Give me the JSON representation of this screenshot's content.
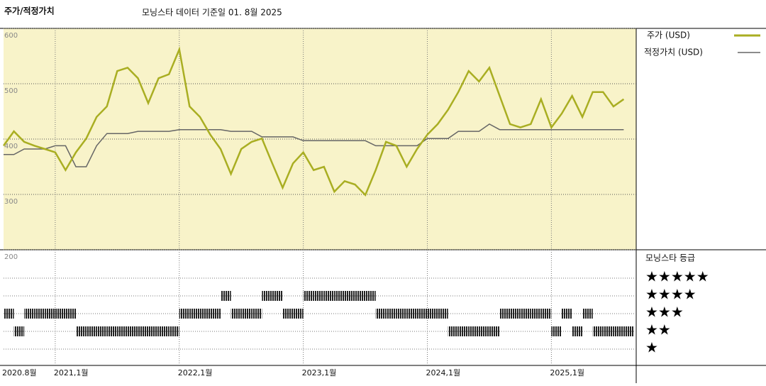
{
  "chart_data": {
    "type": "line",
    "title": "주가/적정가치",
    "subtitle": "모닝스타 데이터 기준일 01. 8월 2025",
    "x": [
      "2020-08",
      "2020-09",
      "2020-10",
      "2020-11",
      "2020-12",
      "2021-01",
      "2021-02",
      "2021-03",
      "2021-04",
      "2021-05",
      "2021-06",
      "2021-07",
      "2021-08",
      "2021-09",
      "2021-10",
      "2021-11",
      "2021-12",
      "2022-01",
      "2022-02",
      "2022-03",
      "2022-04",
      "2022-05",
      "2022-06",
      "2022-07",
      "2022-08",
      "2022-09",
      "2022-10",
      "2022-11",
      "2022-12",
      "2023-01",
      "2023-02",
      "2023-03",
      "2023-04",
      "2023-05",
      "2023-06",
      "2023-07",
      "2023-08",
      "2023-09",
      "2023-10",
      "2023-11",
      "2023-12",
      "2024-01",
      "2024-02",
      "2024-03",
      "2024-04",
      "2024-05",
      "2024-06",
      "2024-07",
      "2024-08",
      "2024-09",
      "2024-10",
      "2024-11",
      "2024-12",
      "2025-01",
      "2025-02",
      "2025-03",
      "2025-04",
      "2025-05",
      "2025-06",
      "2025-07",
      "2025-08"
    ],
    "series": [
      {
        "name": "주가 (USD)",
        "color": "#a9ae22",
        "values": [
          388,
          414,
          395,
          388,
          382,
          376,
          344,
          376,
          401,
          440,
          459,
          523,
          529,
          510,
          465,
          510,
          517,
          562,
          459,
          440,
          408,
          382,
          337,
          382,
          395,
          401,
          356,
          312,
          356,
          376,
          344,
          350,
          305,
          324,
          318,
          299,
          344,
          395,
          388,
          350,
          382,
          408,
          427,
          453,
          485,
          523,
          504,
          529,
          478,
          427,
          421,
          427,
          472,
          421,
          446,
          478,
          440,
          485,
          485,
          459,
          472
        ]
      },
      {
        "name": "적정가치 (USD)",
        "color": "#666666",
        "values": [
          372,
          372,
          382,
          382,
          382,
          388,
          388,
          350,
          350,
          388,
          410,
          410,
          410,
          414,
          414,
          414,
          414,
          417,
          417,
          417,
          417,
          417,
          414,
          414,
          414,
          404,
          404,
          404,
          404,
          397,
          397,
          397,
          397,
          397,
          397,
          397,
          388,
          388,
          388,
          388,
          388,
          401,
          401,
          401,
          414,
          414,
          414,
          427,
          417,
          417,
          417,
          417,
          417,
          417,
          417,
          417,
          417,
          417,
          417,
          417,
          417
        ]
      }
    ],
    "ylim": [
      200,
      600
    ],
    "yticks": [
      200,
      300,
      400,
      500,
      600
    ],
    "xlim": [
      "2020-08",
      "2025-09"
    ],
    "xticks": [
      {
        "value": "2020-08",
        "label": "2020.8월"
      },
      {
        "value": "2021-01",
        "label": "2021,1월"
      },
      {
        "value": "2022-01",
        "label": "2022,1월"
      },
      {
        "value": "2023-01",
        "label": "2023,1월"
      },
      {
        "value": "2024-01",
        "label": "2024,1월"
      },
      {
        "value": "2025-01",
        "label": "2025,1월"
      }
    ],
    "grid": true,
    "background": "#f8f3c9",
    "rating": {
      "title": "모닝스타 등급",
      "levels": [
        {
          "value": 5,
          "label": "★★★★★"
        },
        {
          "value": 4,
          "label": "★★★★"
        },
        {
          "value": 3,
          "label": "★★★"
        },
        {
          "value": 2,
          "label": "★★"
        },
        {
          "value": 1,
          "label": "★"
        }
      ],
      "values": [
        3,
        2,
        3,
        3,
        3,
        3,
        3,
        2,
        2,
        2,
        2,
        2,
        2,
        2,
        2,
        2,
        2,
        3,
        3,
        3,
        3,
        4,
        3,
        3,
        3,
        4,
        4,
        3,
        3,
        4,
        4,
        4,
        4,
        4,
        4,
        4,
        3,
        3,
        3,
        3,
        3,
        3,
        3,
        2,
        2,
        2,
        2,
        2,
        3,
        3,
        3,
        3,
        3,
        2,
        3,
        2,
        3,
        2,
        2,
        2,
        2
      ]
    }
  }
}
